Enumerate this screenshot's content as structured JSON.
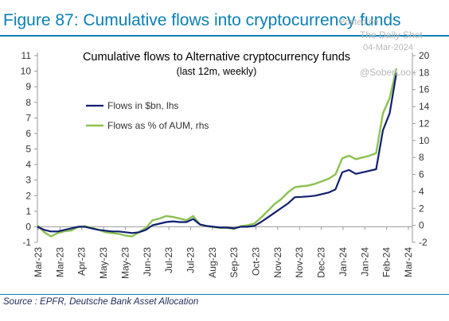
{
  "figure_title": "Figure 87: Cumulative flows into cryptocurrency funds",
  "source": "Source : EPFR, Deutsche Bank Asset Allocation",
  "watermark": {
    "posted": "Posted on",
    "site": "The Daily Shot",
    "date": "04-Mar-2024",
    "handle": "@SoberLook"
  },
  "colors": {
    "title": "#0a7fb6",
    "flows_bn": "#0f1f70",
    "flows_pct": "#8cc152",
    "axis": "#999999"
  },
  "chart_data": {
    "type": "line",
    "title": "Cumulative flows to Alternative cryptocurrency funds",
    "subtitle": "(last 12m, weekly)",
    "x_tick_labels": [
      "Mar-23",
      "Mar-23",
      "Apr-23",
      "May-23",
      "May-23",
      "Jun-23",
      "Jul-23",
      "Jul-23",
      "Aug-23",
      "Sep-23",
      "Oct-23",
      "Nov-23",
      "Nov-23",
      "Dec-23",
      "Jan-24",
      "Jan-24",
      "Feb-24",
      "Mar-24"
    ],
    "left_axis": {
      "ylim": [
        -1,
        11
      ],
      "ticks": [
        -1,
        0,
        1,
        2,
        3,
        4,
        5,
        6,
        7,
        8,
        9,
        10,
        11
      ]
    },
    "right_axis": {
      "ylim": [
        -2,
        20
      ],
      "ticks": [
        -2,
        0,
        2,
        4,
        6,
        8,
        10,
        12,
        14,
        16,
        18,
        20
      ]
    },
    "legend_position": "upper-left",
    "series": [
      {
        "name": "Flows in $bn, lhs",
        "axis": "left",
        "values": [
          0.0,
          -0.2,
          -0.3,
          -0.3,
          -0.2,
          -0.1,
          0.0,
          0.0,
          -0.1,
          -0.2,
          -0.25,
          -0.3,
          -0.3,
          -0.35,
          -0.4,
          -0.35,
          -0.2,
          0.1,
          0.2,
          0.3,
          0.35,
          0.3,
          0.3,
          0.5,
          0.15,
          0.05,
          0.0,
          -0.05,
          -0.05,
          -0.1,
          0.0,
          0.0,
          0.05,
          0.3,
          0.6,
          0.9,
          1.2,
          1.5,
          1.9,
          1.92,
          1.95,
          2.0,
          2.1,
          2.2,
          2.4,
          3.5,
          3.65,
          3.4,
          3.5,
          3.6,
          3.7,
          6.2,
          7.3,
          9.9
        ]
      },
      {
        "name": "Flows as % of AUM, rhs",
        "axis": "right",
        "values": [
          0.0,
          -0.8,
          -1.3,
          -0.9,
          -0.7,
          -0.6,
          -0.2,
          -0.1,
          -0.3,
          -0.5,
          -0.8,
          -0.9,
          -1.0,
          -1.2,
          -1.3,
          -0.8,
          -0.3,
          0.6,
          0.8,
          1.1,
          1.0,
          0.8,
          0.6,
          1.1,
          0.1,
          -0.1,
          -0.2,
          -0.3,
          -0.3,
          -0.4,
          -0.1,
          0.0,
          0.2,
          0.9,
          1.7,
          2.5,
          3.1,
          3.9,
          4.5,
          4.6,
          4.7,
          4.9,
          5.2,
          5.5,
          6.0,
          7.9,
          8.2,
          7.8,
          8.0,
          8.2,
          8.5,
          13.2,
          15.0,
          18.5
        ]
      }
    ]
  }
}
